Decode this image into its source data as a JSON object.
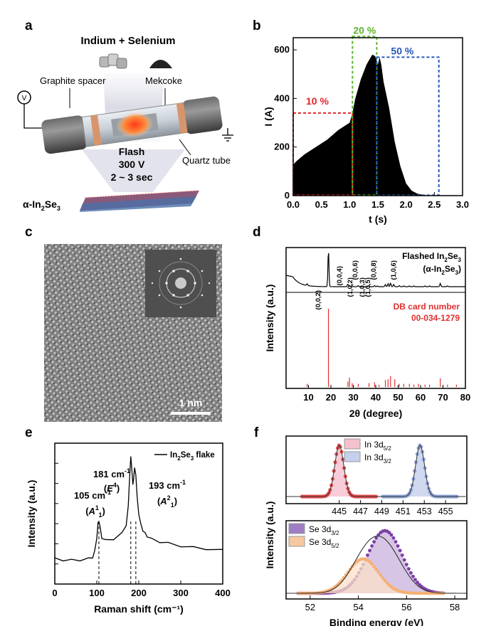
{
  "panels": {
    "a": "a",
    "b": "b",
    "c": "c",
    "d": "d",
    "e": "e",
    "f": "f"
  },
  "panel_a": {
    "title": "Indium + Selenium",
    "graphite": "Graphite spacer",
    "mekcoke": "Mekcoke",
    "quartz": "Quartz tube",
    "flash": "Flash",
    "voltage": "300 V",
    "duration": "2 ~ 3 sec",
    "product_pre": "α-In",
    "product_sub1": "2",
    "product_mid": "Se",
    "product_sub2": "3",
    "voltmeter": "V"
  },
  "panel_c": {
    "scalebar": "1 nm"
  },
  "chart_data": [
    {
      "panel": "b",
      "type": "area",
      "xlabel": "t (s)",
      "ylabel": "I (A)",
      "xlim": [
        0,
        3.0
      ],
      "ylim": [
        0,
        650
      ],
      "xticks": [
        "0.0",
        "0.5",
        "1.0",
        "1.5",
        "2.0",
        "2.5",
        "3.0"
      ],
      "yticks": [
        "0",
        "200",
        "400",
        "600"
      ],
      "x": [
        0,
        0.01,
        0.05,
        0.2,
        0.4,
        0.6,
        0.8,
        1.0,
        1.05,
        1.1,
        1.2,
        1.3,
        1.35,
        1.4,
        1.45,
        1.48,
        1.5,
        1.53,
        1.56,
        1.6,
        1.7,
        1.8,
        1.9,
        2.0,
        2.1,
        2.2,
        2.3,
        2.4,
        2.5,
        2.6,
        3.0
      ],
      "y": [
        0,
        130,
        140,
        170,
        200,
        230,
        270,
        300,
        340,
        400,
        480,
        540,
        560,
        580,
        575,
        555,
        540,
        570,
        540,
        470,
        360,
        220,
        120,
        50,
        20,
        8,
        3,
        1,
        0,
        0,
        0
      ],
      "regions": [
        {
          "label": "10 %",
          "x": [
            0.0,
            1.05
          ],
          "y_top": 340,
          "color": "#e8232a"
        },
        {
          "label": "20 %",
          "x": [
            1.05,
            1.48
          ],
          "y_top": 655,
          "color": "#5cb530"
        },
        {
          "label": "50 %",
          "x": [
            1.48,
            2.58
          ],
          "y_top": 570,
          "color": "#2458b8"
        }
      ]
    },
    {
      "panel": "d",
      "type": "line",
      "xlabel": "2θ (degree)",
      "ylabel": "Intensity (a.u.)",
      "xlim": [
        0,
        80
      ],
      "xticks": [
        "10",
        "20",
        "30",
        "40",
        "50",
        "60",
        "70",
        "80"
      ],
      "series": [
        {
          "name": "Flashed In2Se3 (α-In2Se3)",
          "color": "#000000",
          "peaks": [
            [
              9.4,
              0.05
            ],
            [
              18.9,
              1.0
            ],
            [
              27.5,
              0.06
            ],
            [
              28.1,
              0.04
            ],
            [
              29.5,
              0.03
            ],
            [
              32.2,
              0.03
            ],
            [
              37.0,
              0.03
            ],
            [
              39.5,
              0.03
            ],
            [
              40.7,
              0.02
            ],
            [
              44.3,
              0.06
            ],
            [
              45.5,
              0.08
            ],
            [
              46.6,
              0.1
            ],
            [
              48.0,
              0.06
            ],
            [
              50.5,
              0.03
            ],
            [
              52.5,
              0.02
            ],
            [
              55.0,
              0.02
            ],
            [
              57.0,
              0.02
            ],
            [
              62.0,
              0.02
            ],
            [
              64.0,
              0.02
            ],
            [
              68.8,
              0.09
            ],
            [
              72.0,
              0.02
            ]
          ]
        },
        {
          "name": "DB card number 00-034-1279",
          "color": "#e03030",
          "peaks": [
            [
              9.4,
              0.04
            ],
            [
              18.9,
              1.0
            ],
            [
              27.6,
              0.07
            ],
            [
              28.3,
              0.12
            ],
            [
              29.5,
              0.05
            ],
            [
              32.2,
              0.04
            ],
            [
              37.0,
              0.05
            ],
            [
              39.5,
              0.06
            ],
            [
              41.5,
              0.03
            ],
            [
              44.3,
              0.09
            ],
            [
              45.5,
              0.1
            ],
            [
              46.6,
              0.14
            ],
            [
              48.5,
              0.1
            ],
            [
              50.5,
              0.04
            ],
            [
              52.5,
              0.04
            ],
            [
              55.0,
              0.04
            ],
            [
              57.0,
              0.03
            ],
            [
              59.0,
              0.04
            ],
            [
              62.0,
              0.03
            ],
            [
              64.0,
              0.03
            ],
            [
              68.8,
              0.11
            ],
            [
              72.0,
              0.03
            ],
            [
              76.0,
              0.03
            ]
          ]
        }
      ],
      "annotations": [
        "(0,0,2)",
        "(0,0,4)",
        "(1,0,2)",
        "(0,0,6)",
        "(1,0,3)",
        "(1,0,5)",
        "(0,0,8)",
        "(1,0,6)"
      ],
      "legend1_line1": "Flashed In",
      "legend1_sub": "2",
      "legend1_se": "Se",
      "legend1_sub2": "3",
      "legend1_line2": "(α-In",
      "legend1_line2_se": "Se",
      "legend1_line2_end": ")",
      "legend2_line1": "DB card number",
      "legend2_line2": "00-034-1279"
    },
    {
      "panel": "e",
      "type": "line",
      "xlabel": "Raman shift (cm⁻¹)",
      "ylabel": "Intensity (a.u.)",
      "xlim": [
        0,
        400
      ],
      "xticks": [
        "0",
        "100",
        "200",
        "300",
        "400"
      ],
      "series": [
        {
          "name": "In2Se3 flake",
          "color": "#000000",
          "x": [
            0,
            20,
            40,
            60,
            80,
            90,
            95,
            100,
            103,
            105,
            108,
            112,
            120,
            140,
            160,
            170,
            175,
            178,
            181,
            184,
            186,
            188,
            190,
            193,
            196,
            200,
            205,
            210,
            215,
            220,
            230,
            250,
            270,
            300,
            330,
            360,
            400
          ],
          "y": [
            0.18,
            0.17,
            0.17,
            0.17,
            0.18,
            0.19,
            0.23,
            0.33,
            0.43,
            0.45,
            0.4,
            0.33,
            0.31,
            0.32,
            0.36,
            0.42,
            0.55,
            0.75,
            0.9,
            0.8,
            0.7,
            0.76,
            0.82,
            0.78,
            0.62,
            0.5,
            0.42,
            0.38,
            0.36,
            0.34,
            0.32,
            0.3,
            0.29,
            0.27,
            0.26,
            0.25,
            0.24
          ]
        }
      ],
      "peaks": [
        {
          "x": 105,
          "label": "105 cm",
          "sup": "-1",
          "mode": "(A",
          "mode_sup": "1",
          "mode_sub": "1",
          "mode_end": ")"
        },
        {
          "x": 181,
          "label": "181 cm",
          "sup": "-1",
          "mode": "(E",
          "mode_sup": "4",
          "mode_end": ")"
        },
        {
          "x": 193,
          "label": "193 cm",
          "sup": "-1",
          "mode": "(A",
          "mode_sup": "2",
          "mode_sub": "1",
          "mode_end": ")"
        }
      ],
      "legend": "In",
      "legend_sub": "2",
      "legend_se": "Se",
      "legend_sub2": "3",
      "legend_end": " flake"
    },
    {
      "panel": "f-top",
      "type": "line",
      "xlim": [
        440,
        457
      ],
      "xticks": [
        "445",
        "447",
        "449",
        "451",
        "453",
        "455"
      ],
      "series": [
        {
          "name": "In 3d5/2",
          "color": "#e34b4b",
          "center": 445.0,
          "fwhm": 1.0
        },
        {
          "name": "In 3d3/2",
          "color": "#8ea4d6",
          "center": 452.6,
          "fwhm": 1.0
        }
      ],
      "legend": [
        {
          "pre": "In 3d",
          "sub": "5/2",
          "fill": "#f6c1cf"
        },
        {
          "pre": "In 3d",
          "sub": "3/2",
          "fill": "#c6d0ec"
        }
      ]
    },
    {
      "panel": "f-bottom",
      "type": "line",
      "xlabel": "Binding energy (eV)",
      "ylabel": "Intensity (a.u.)",
      "xlim": [
        51,
        58.5
      ],
      "xticks": [
        "52",
        "54",
        "56",
        "58"
      ],
      "series": [
        {
          "name": "Se 3d3/2",
          "color": "#7b3fa6",
          "center": 55.1,
          "fwhm": 1.7,
          "amp": 1.0
        },
        {
          "name": "Se 3d5/2",
          "color": "#f5b076",
          "center": 54.2,
          "fwhm": 1.5,
          "amp": 0.55
        }
      ],
      "legend": [
        {
          "pre": "Se 3d",
          "sub": "3/2",
          "fill": "#a07dc4"
        },
        {
          "pre": "Se 3d",
          "sub": "5/2",
          "fill": "#f7c8a0"
        }
      ]
    }
  ]
}
